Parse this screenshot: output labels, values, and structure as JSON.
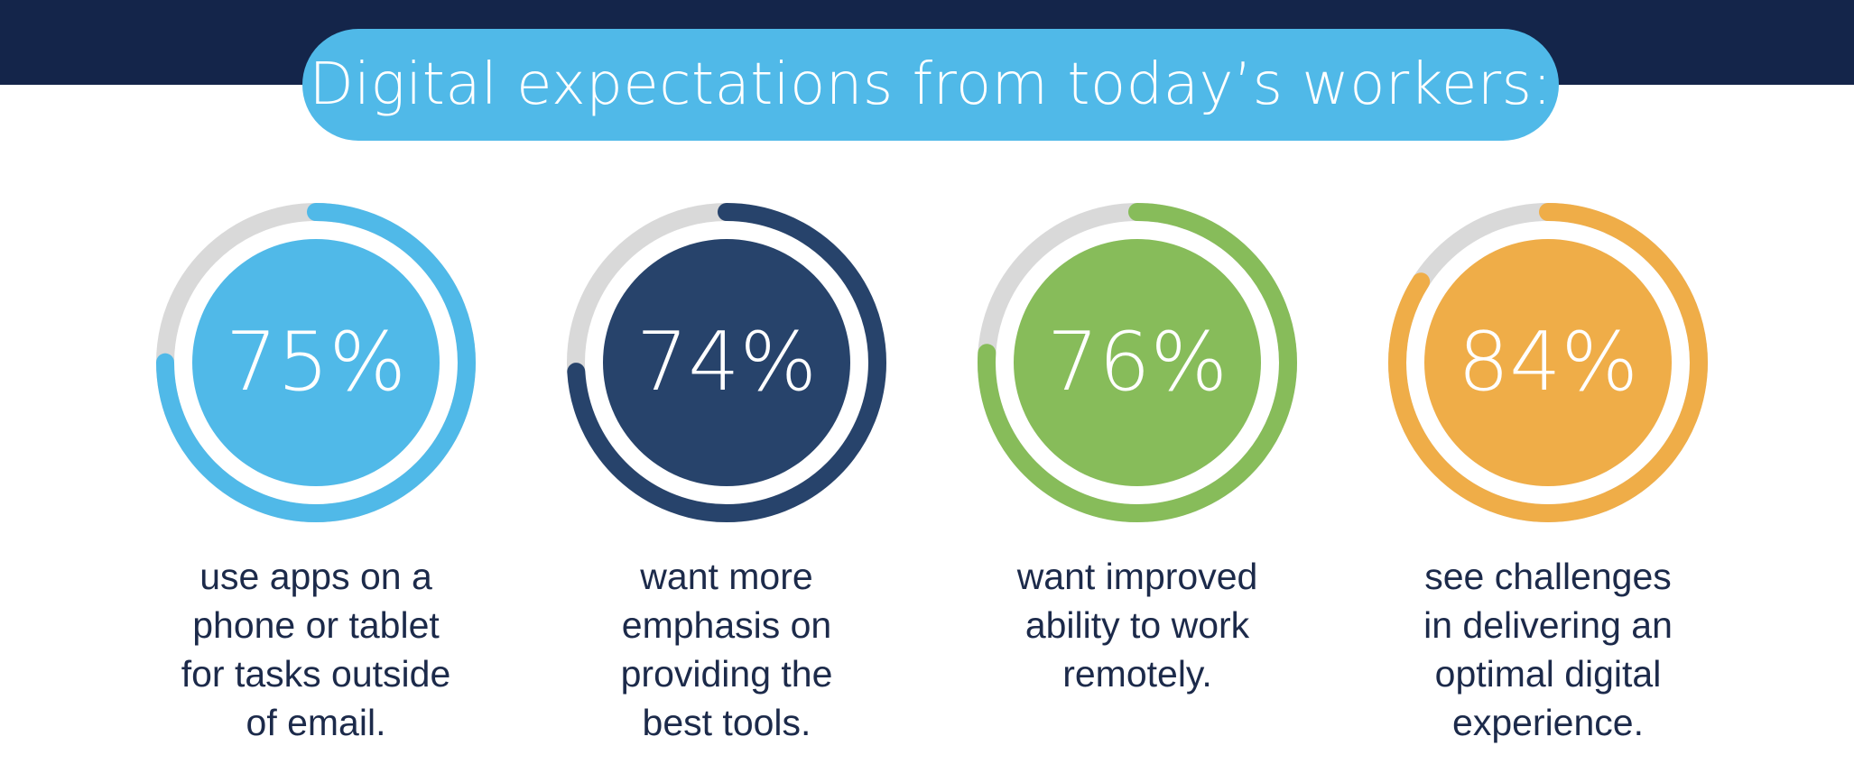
{
  "title": "Digital expectations from today’s workers:",
  "colors": {
    "band": "#14254a",
    "pill": "#50b9e8",
    "track": "#d9d9d9",
    "caption": "#1c2a4a"
  },
  "chart_data": {
    "type": "pie",
    "title": "Digital expectations from today’s workers:",
    "unit": "%",
    "items": [
      {
        "value": 75,
        "label_text": "75%",
        "caption_lines": [
          "use apps on a",
          "phone or tablet",
          "for tasks outside",
          "of email."
        ],
        "color": "#50b9e8"
      },
      {
        "value": 74,
        "label_text": "74%",
        "caption_lines": [
          "want more",
          "emphasis on",
          "providing the",
          "best tools."
        ],
        "color": "#27436b"
      },
      {
        "value": 76,
        "label_text": "76%",
        "caption_lines": [
          "want improved",
          "ability to work",
          "remotely."
        ],
        "color": "#87bc5a"
      },
      {
        "value": 84,
        "label_text": "84%",
        "caption_lines": [
          "see challenges",
          "in delivering an",
          "optimal digital",
          "experience."
        ],
        "color": "#efad48"
      }
    ]
  }
}
